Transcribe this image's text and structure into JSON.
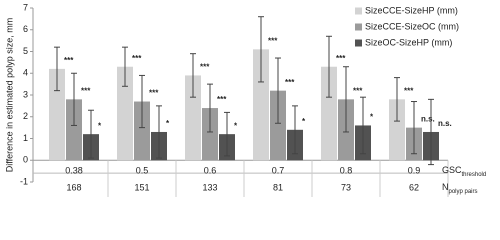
{
  "chart_data": {
    "type": "bar",
    "y_label": "Difference in estimated polyp size, mm",
    "categories": [
      "0.38",
      "0.5",
      "0.6",
      "0.7",
      "0.8",
      "0.9"
    ],
    "category_label": {
      "main": "GSC",
      "sub": "threshold"
    },
    "second_row": {
      "label": {
        "main": "N",
        "sub": "polyp pairs"
      },
      "values": [
        168,
        151,
        133,
        81,
        73,
        62
      ]
    },
    "series": [
      {
        "name": "SizeCCE-SizeHP (mm)",
        "color": "#d3d3d3",
        "values": [
          4.2,
          4.3,
          3.9,
          5.1,
          4.3,
          2.8
        ],
        "errors": [
          1.0,
          0.9,
          1.0,
          1.5,
          1.4,
          1.0
        ],
        "annotations": [
          "***",
          "***",
          "***",
          "***",
          "***",
          "***"
        ]
      },
      {
        "name": "SizeCCE-SizeOC (mm)",
        "color": "#9b9b9b",
        "values": [
          2.8,
          2.7,
          2.4,
          3.2,
          2.8,
          1.5
        ],
        "errors": [
          1.2,
          1.2,
          1.1,
          1.5,
          1.5,
          1.2
        ],
        "annotations": [
          "***",
          "***",
          "***",
          "***",
          "***",
          "n.s."
        ]
      },
      {
        "name": "SizeOC-SizeHP (mm)",
        "color": "#525252",
        "values": [
          1.2,
          1.3,
          1.2,
          1.4,
          1.6,
          1.3
        ],
        "errors": [
          1.1,
          1.2,
          1.0,
          1.1,
          1.3,
          1.5
        ],
        "annotations": [
          "*",
          "*",
          "*",
          "*",
          "*",
          "n.s."
        ]
      }
    ],
    "ylim": [
      -1,
      7
    ],
    "yticks": [
      -1,
      0,
      1,
      2,
      3,
      4,
      5,
      6,
      7
    ],
    "legend": "top-right"
  }
}
